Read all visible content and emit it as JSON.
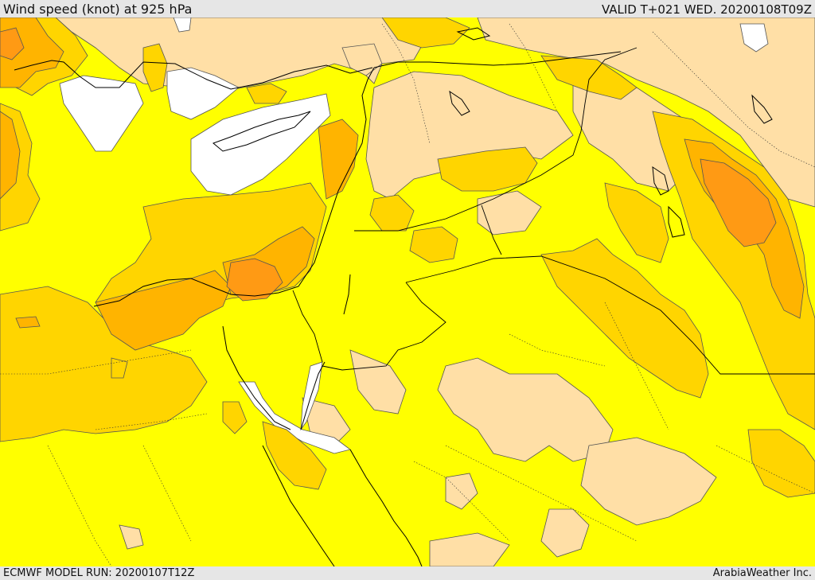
{
  "header": {
    "title": "Wind speed (knot) at 925 hPa",
    "valid": "VALID T+021 WED. 20200108T09Z"
  },
  "footer": {
    "model_run": "ECMWF MODEL RUN: 20200107T12Z",
    "brand": "ArabiaWeather Inc."
  },
  "palette": {
    "calm": "#ffffff",
    "light": "#ffdfa6",
    "moderate": "#ffff00",
    "fresh": "#ffd500",
    "strong": "#ffb400",
    "very_strong": "#ff9a14",
    "contour": "#555555",
    "coastline": "#000000",
    "border": "#000000"
  }
}
